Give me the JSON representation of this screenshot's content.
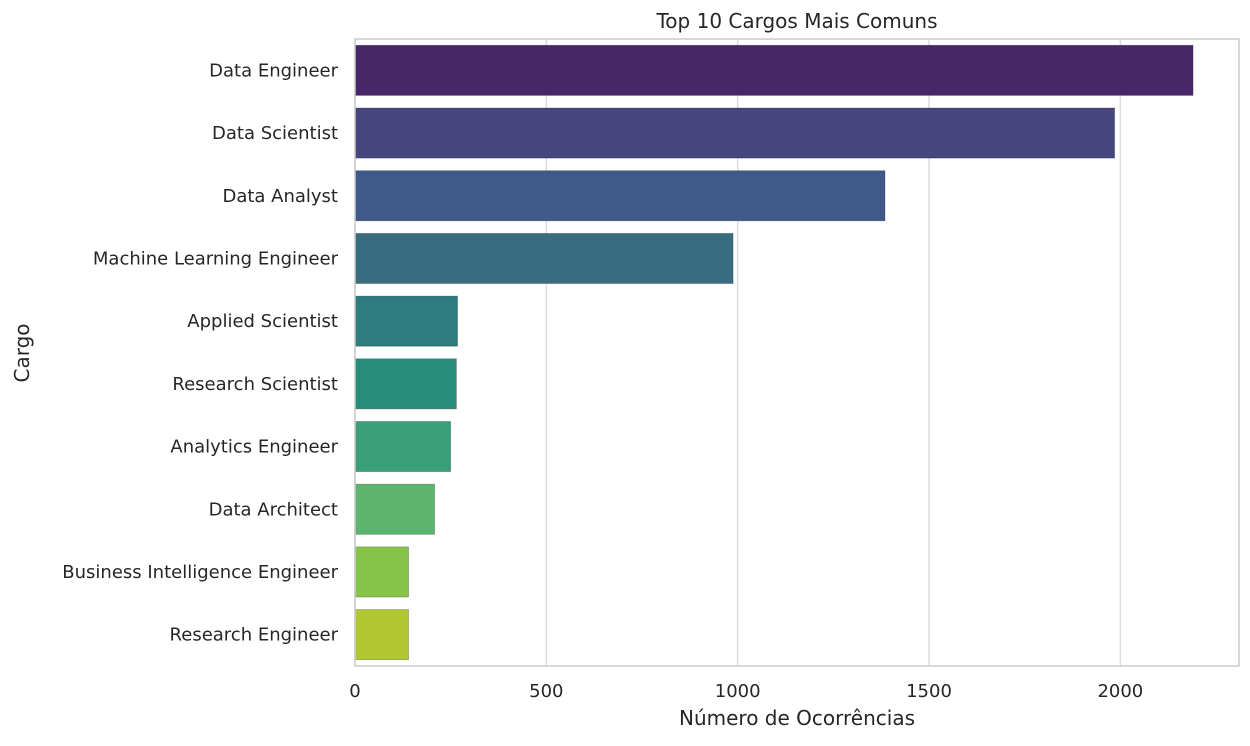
{
  "chart_data": {
    "type": "bar",
    "orientation": "horizontal",
    "title": "Top 10 Cargos Mais Comuns",
    "xlabel": "Número de Ocorrências",
    "ylabel": "Cargo",
    "xlim": [
      0,
      2310
    ],
    "xticks": [
      0,
      500,
      1000,
      1500,
      2000
    ],
    "grid": "vertical",
    "legend": "none",
    "categories": [
      "Data Engineer",
      "Data Scientist",
      "Data Analyst",
      "Machine Learning Engineer",
      "Applied Scientist",
      "Research Scientist",
      "Analytics Engineer",
      "Data Architect",
      "Business Intelligence Engineer",
      "Research Engineer"
    ],
    "values": [
      2190,
      1985,
      1385,
      988,
      268,
      265,
      250,
      208,
      140,
      140
    ],
    "colors": [
      "#482668",
      "#46457d",
      "#41598a",
      "#386c80",
      "#2f7c80",
      "#2a8d7c",
      "#3a9f78",
      "#5db46f",
      "#86c34b",
      "#b2c832"
    ]
  }
}
